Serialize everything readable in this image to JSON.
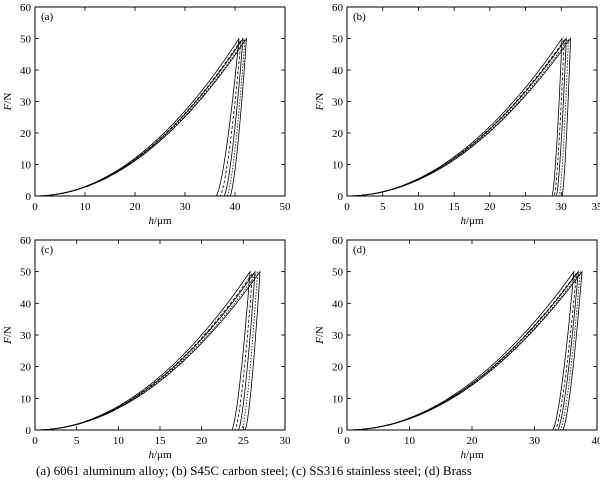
{
  "caption": "(a)  6061 aluminum   alloy; (b) S45C carbon steel; (c) SS316 stainless steel; (d) Brass",
  "chart_data": [
    {
      "id": "a",
      "panel_label": "(a)",
      "type": "line",
      "xlabel_var": "h",
      "xlabel_unit": "/μm",
      "ylabel_var": "F",
      "ylabel_unit": "/N",
      "xlim": [
        0,
        50
      ],
      "ylim": [
        0,
        60
      ],
      "xticks": [
        0,
        10,
        20,
        30,
        40,
        50
      ],
      "yticks": [
        0,
        10,
        20,
        30,
        40,
        50,
        60
      ],
      "grid": false,
      "series": [
        {
          "hmax": 40.8,
          "hf": 36.2,
          "fmax": 50
        },
        {
          "hmax": 41.2,
          "hf": 37.0,
          "fmax": 49.5
        },
        {
          "hmax": 41.6,
          "hf": 37.8,
          "fmax": 50
        },
        {
          "hmax": 42.0,
          "hf": 38.4,
          "fmax": 49.8
        },
        {
          "hmax": 42.3,
          "hf": 39.0,
          "fmax": 50
        }
      ]
    },
    {
      "id": "b",
      "panel_label": "(b)",
      "type": "line",
      "xlabel_var": "h",
      "xlabel_unit": "/μm",
      "ylabel_var": "F",
      "ylabel_unit": "/N",
      "xlim": [
        0,
        35
      ],
      "ylim": [
        0,
        60
      ],
      "xticks": [
        0,
        5,
        10,
        15,
        20,
        25,
        30,
        35
      ],
      "yticks": [
        0,
        10,
        20,
        30,
        40,
        50,
        60
      ],
      "grid": false,
      "series": [
        {
          "hmax": 30.1,
          "hf": 28.7,
          "fmax": 50
        },
        {
          "hmax": 30.4,
          "hf": 29.0,
          "fmax": 49.5
        },
        {
          "hmax": 30.7,
          "hf": 29.3,
          "fmax": 50
        },
        {
          "hmax": 31.0,
          "hf": 29.7,
          "fmax": 49.8
        },
        {
          "hmax": 31.3,
          "hf": 30.1,
          "fmax": 50
        }
      ]
    },
    {
      "id": "c",
      "panel_label": "(c)",
      "type": "line",
      "xlabel_var": "h",
      "xlabel_unit": "/μm",
      "ylabel_var": "F",
      "ylabel_unit": "/N",
      "xlim": [
        0,
        30
      ],
      "ylim": [
        0,
        60
      ],
      "xticks": [
        0,
        5,
        10,
        15,
        20,
        25,
        30
      ],
      "yticks": [
        0,
        10,
        20,
        30,
        40,
        50,
        60
      ],
      "grid": false,
      "series": [
        {
          "hmax": 25.8,
          "hf": 23.6,
          "fmax": 50
        },
        {
          "hmax": 26.1,
          "hf": 24.0,
          "fmax": 49.5
        },
        {
          "hmax": 26.4,
          "hf": 24.4,
          "fmax": 50
        },
        {
          "hmax": 26.7,
          "hf": 24.8,
          "fmax": 49.8
        },
        {
          "hmax": 27.0,
          "hf": 25.2,
          "fmax": 50
        }
      ]
    },
    {
      "id": "d",
      "panel_label": "(d)",
      "type": "line",
      "xlabel_var": "h",
      "xlabel_unit": "/μm",
      "ylabel_var": "F",
      "ylabel_unit": "/N",
      "xlim": [
        0,
        40
      ],
      "ylim": [
        0,
        60
      ],
      "xticks": [
        0,
        10,
        20,
        30,
        40
      ],
      "yticks": [
        0,
        10,
        20,
        30,
        40,
        50,
        60
      ],
      "grid": false,
      "series": [
        {
          "hmax": 36.3,
          "hf": 32.9,
          "fmax": 50
        },
        {
          "hmax": 36.7,
          "hf": 33.3,
          "fmax": 49.5
        },
        {
          "hmax": 37.0,
          "hf": 33.7,
          "fmax": 50
        },
        {
          "hmax": 37.3,
          "hf": 34.1,
          "fmax": 49.8
        },
        {
          "hmax": 37.6,
          "hf": 34.5,
          "fmax": 50
        }
      ]
    }
  ]
}
